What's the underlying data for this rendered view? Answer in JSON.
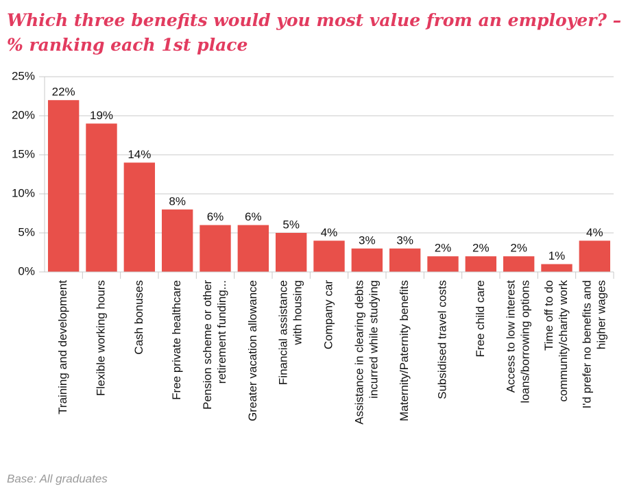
{
  "chart_data": {
    "type": "bar",
    "title": [
      "Which three benefits would you most value from an employer? –",
      "% ranking each 1st place"
    ],
    "categories": [
      [
        "Training and development"
      ],
      [
        "Flexible working hours"
      ],
      [
        "Cash bonuses"
      ],
      [
        "Free private healthcare"
      ],
      [
        "Pension scheme or other",
        "retirement funding..."
      ],
      [
        "Greater vacation allowance"
      ],
      [
        "Financial assistance",
        "with housing"
      ],
      [
        "Company car"
      ],
      [
        "Assistance in clearing debts",
        "incurred while studying"
      ],
      [
        "Maternity/Paternity benefits"
      ],
      [
        "Subsidised travel costs"
      ],
      [
        "Free child care"
      ],
      [
        "Access to low interest",
        "loans/borrowing options"
      ],
      [
        "Time off to do",
        "community/charity work"
      ],
      [
        "I'd prefer no benefits and",
        "higher wages"
      ]
    ],
    "values": [
      22,
      19,
      14,
      8,
      6,
      6,
      5,
      4,
      3,
      3,
      2,
      2,
      2,
      1,
      4
    ],
    "value_labels": [
      "22%",
      "19%",
      "14%",
      "8%",
      "6%",
      "6%",
      "5%",
      "4%",
      "3%",
      "3%",
      "2%",
      "2%",
      "2%",
      "1%",
      "4%"
    ],
    "color": "#e8504a",
    "ylim": [
      0,
      25
    ],
    "yticks": [
      {
        "value": 0,
        "label": "0%"
      },
      {
        "value": 5,
        "label": "5%"
      },
      {
        "value": 10,
        "label": "10%"
      },
      {
        "value": 15,
        "label": "15%"
      },
      {
        "value": 20,
        "label": "20%"
      },
      {
        "value": 25,
        "label": "25%"
      }
    ],
    "grid": true,
    "note": "Base: All graduates"
  }
}
